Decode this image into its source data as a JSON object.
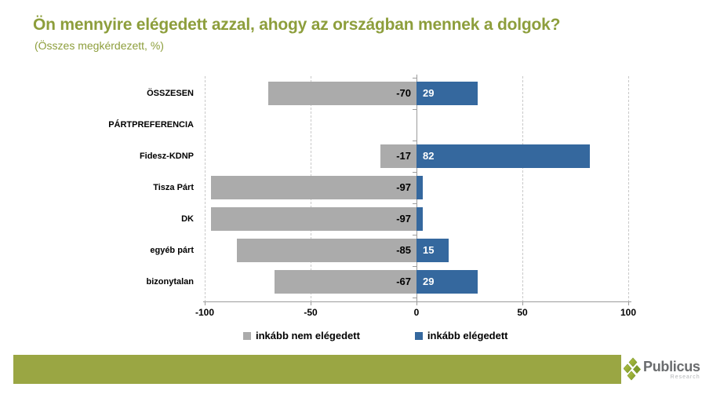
{
  "header": {
    "title": "Ön mennyire elégedett azzal, ahogy az országban mennek a dolgok?",
    "subtitle": "(Összes megkérdezett, %)"
  },
  "chart_data": {
    "type": "bar",
    "orientation": "horizontal-diverging",
    "title": "Ön mennyire elégedett azzal, ahogy az országban mennek a dolgok?",
    "subtitle": "(Összes megkérdezett, %)",
    "x_axis": {
      "min": -100,
      "max": 100,
      "ticks": [
        -100,
        -50,
        0,
        50,
        100
      ],
      "gridlines": "dashed"
    },
    "legend_position": "bottom",
    "legend": [
      {
        "label": "inkább nem elégedett",
        "color": "#ABABAB"
      },
      {
        "label": "inkább elégedett",
        "color": "#35689E"
      }
    ],
    "rows": [
      {
        "category": "ÖSSZESEN",
        "neg": -70,
        "pos": 29,
        "neg_label": "-70",
        "pos_label": "29"
      },
      {
        "category": "PÁRTPREFERENCIA",
        "neg": null,
        "pos": null,
        "neg_label": "",
        "pos_label": ""
      },
      {
        "category": "Fidesz-KDNP",
        "neg": -17,
        "pos": 82,
        "neg_label": "-17",
        "pos_label": "82"
      },
      {
        "category": "Tisza Párt",
        "neg": -97,
        "pos": 3,
        "neg_label": "-97",
        "pos_label": ""
      },
      {
        "category": "DK",
        "neg": -97,
        "pos": 3,
        "neg_label": "-97",
        "pos_label": ""
      },
      {
        "category": "egyéb párt",
        "neg": -85,
        "pos": 15,
        "neg_label": "-85",
        "pos_label": "15"
      },
      {
        "category": "bizonytalan",
        "neg": -67,
        "pos": 29,
        "neg_label": "-67",
        "pos_label": "29"
      }
    ]
  },
  "footer": {
    "logo_text": "Publicus",
    "logo_subtext": "Research"
  },
  "colors": {
    "title": "#8D9E3C",
    "band": "#9AA643",
    "bar_negative": "#ABABAB",
    "bar_positive": "#35689E",
    "axis": "#9C9C9C",
    "gridline": "#C9C9C9",
    "logo_text": "#6A6C6E",
    "logo_subtext": "#B3B5B7",
    "logo_diamond_light": "#A9B93C",
    "logo_diamond_dark": "#7E9A2B"
  }
}
